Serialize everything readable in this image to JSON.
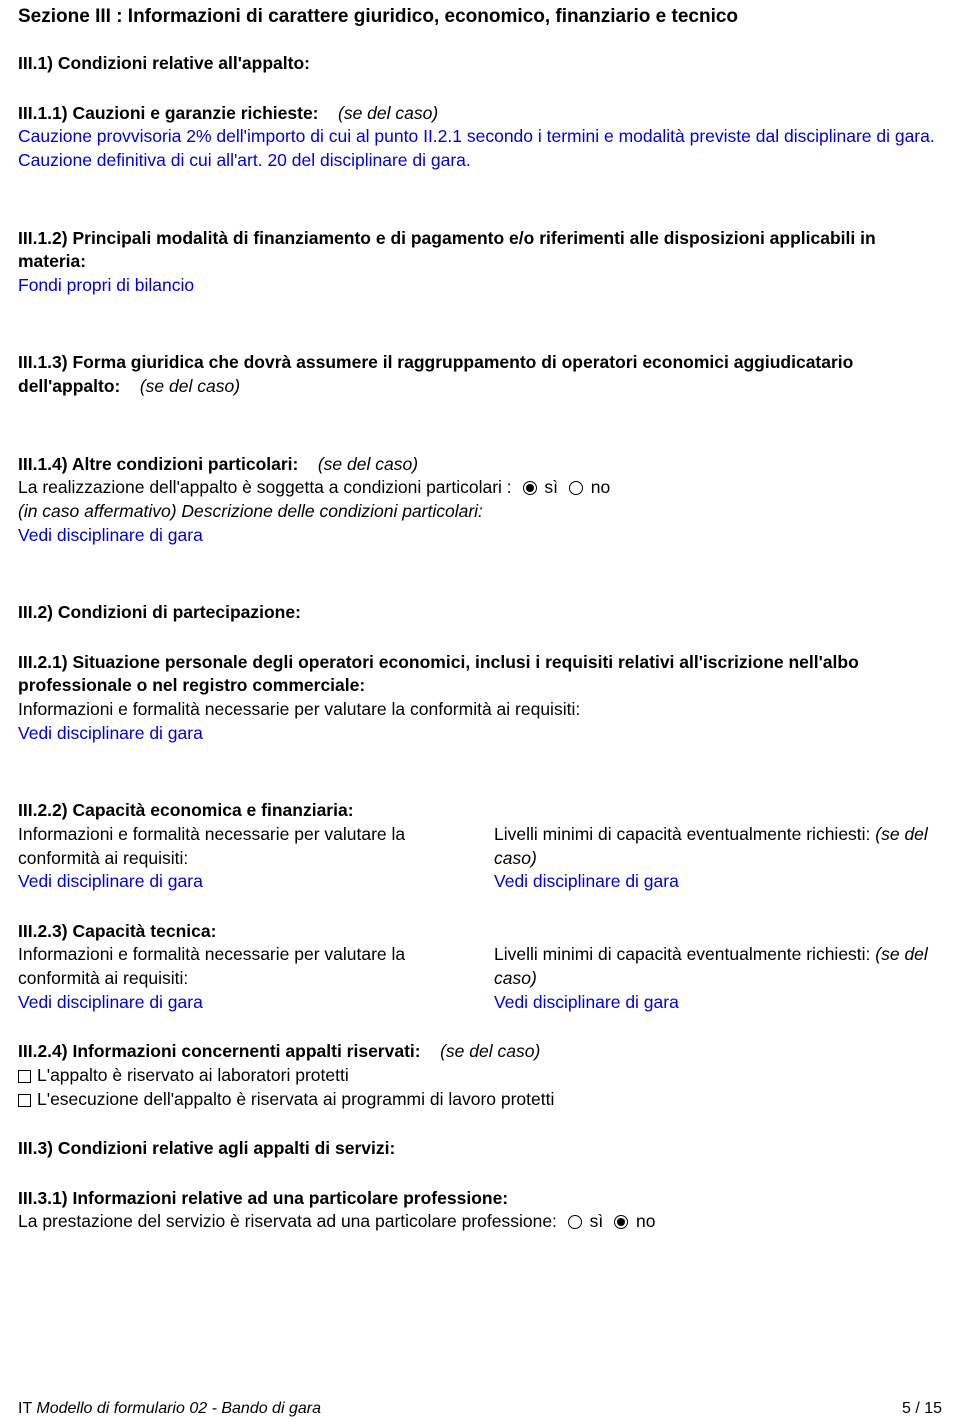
{
  "colors": {
    "text": "#000000",
    "link": "#0000dd",
    "background": "#ffffff"
  },
  "fonts": {
    "family": "Arial, Helvetica, sans-serif",
    "body_size": 17.5,
    "title_size": 19
  },
  "section_title": "Sezione III : Informazioni di carattere giuridico, economico, finanziario e tecnico",
  "iii_1": {
    "heading": "III.1) Condizioni relative all'appalto:",
    "s1": {
      "label": "III.1.1) Cauzioni e garanzie richieste:",
      "note": "(se del caso)",
      "body": "Cauzione provvisoria 2% dell'importo di cui al punto II.2.1 secondo i termini e modalità previste dal disciplinare di gara. Cauzione definitiva di cui all'art. 20 del disciplinare di gara."
    },
    "s2": {
      "label": "III.1.2) Principali modalità di finanziamento e di pagamento e/o riferimenti alle disposizioni applicabili in materia:",
      "body": "Fondi propri di bilancio"
    },
    "s3": {
      "label": "III.1.3) Forma giuridica che dovrà assumere il raggruppamento di operatori economici aggiudicatario dell'appalto:",
      "note": "(se del caso)"
    },
    "s4": {
      "label": "III.1.4) Altre condizioni particolari:",
      "note": "(se del caso)",
      "line1": "La realizzazione dell'appalto è soggetta a condizioni particolari :",
      "yes": "sì",
      "no": "no",
      "selected": "si",
      "line2": "(in caso affermativo) Descrizione delle condizioni particolari:",
      "body": "Vedi disciplinare di gara"
    }
  },
  "iii_2": {
    "heading": "III.2) Condizioni di partecipazione:",
    "s1": {
      "label": "III.2.1) Situazione personale degli operatori economici, inclusi i requisiti relativi all'iscrizione nell'albo professionale o nel registro commerciale:",
      "line": "Informazioni e formalità necessarie per valutare la conformità ai requisiti:",
      "body": "Vedi disciplinare di gara"
    },
    "s2": {
      "label": "III.2.2) Capacità economica e finanziaria:",
      "left_line": "Informazioni e formalità necessarie per valutare la conformità ai requisiti:",
      "left_body": "Vedi disciplinare di gara",
      "right_line_a": "Livelli minimi di capacità eventualmente richiesti: ",
      "right_line_b": "(se del caso)",
      "right_body": "Vedi disciplinare di gara"
    },
    "s3": {
      "label": "III.2.3) Capacità tecnica:",
      "left_line": "Informazioni e formalità necessarie per valutare la conformità ai requisiti:",
      "left_body": "Vedi disciplinare di gara",
      "right_line_a": "Livelli minimi di capacità eventualmente richiesti: ",
      "right_line_b": "(se del caso)",
      "right_body": "Vedi disciplinare di gara"
    },
    "s4": {
      "label": "III.2.4) Informazioni concernenti appalti riservati:",
      "note": "(se del caso)",
      "cb1": "L'appalto è riservato ai laboratori protetti",
      "cb2": "L'esecuzione dell'appalto è riservata ai programmi di lavoro protetti"
    }
  },
  "iii_3": {
    "heading": "III.3) Condizioni relative agli appalti di servizi:",
    "s1": {
      "label": "III.3.1) Informazioni relative ad una particolare professione:",
      "line": "La prestazione del servizio è riservata ad una particolare professione:",
      "yes": "sì",
      "no": "no",
      "selected": "no"
    }
  },
  "footer": {
    "left_prefix": "IT  ",
    "left_title": "Modello di formulario 02 - Bando di gara",
    "right": "5 / 15"
  }
}
